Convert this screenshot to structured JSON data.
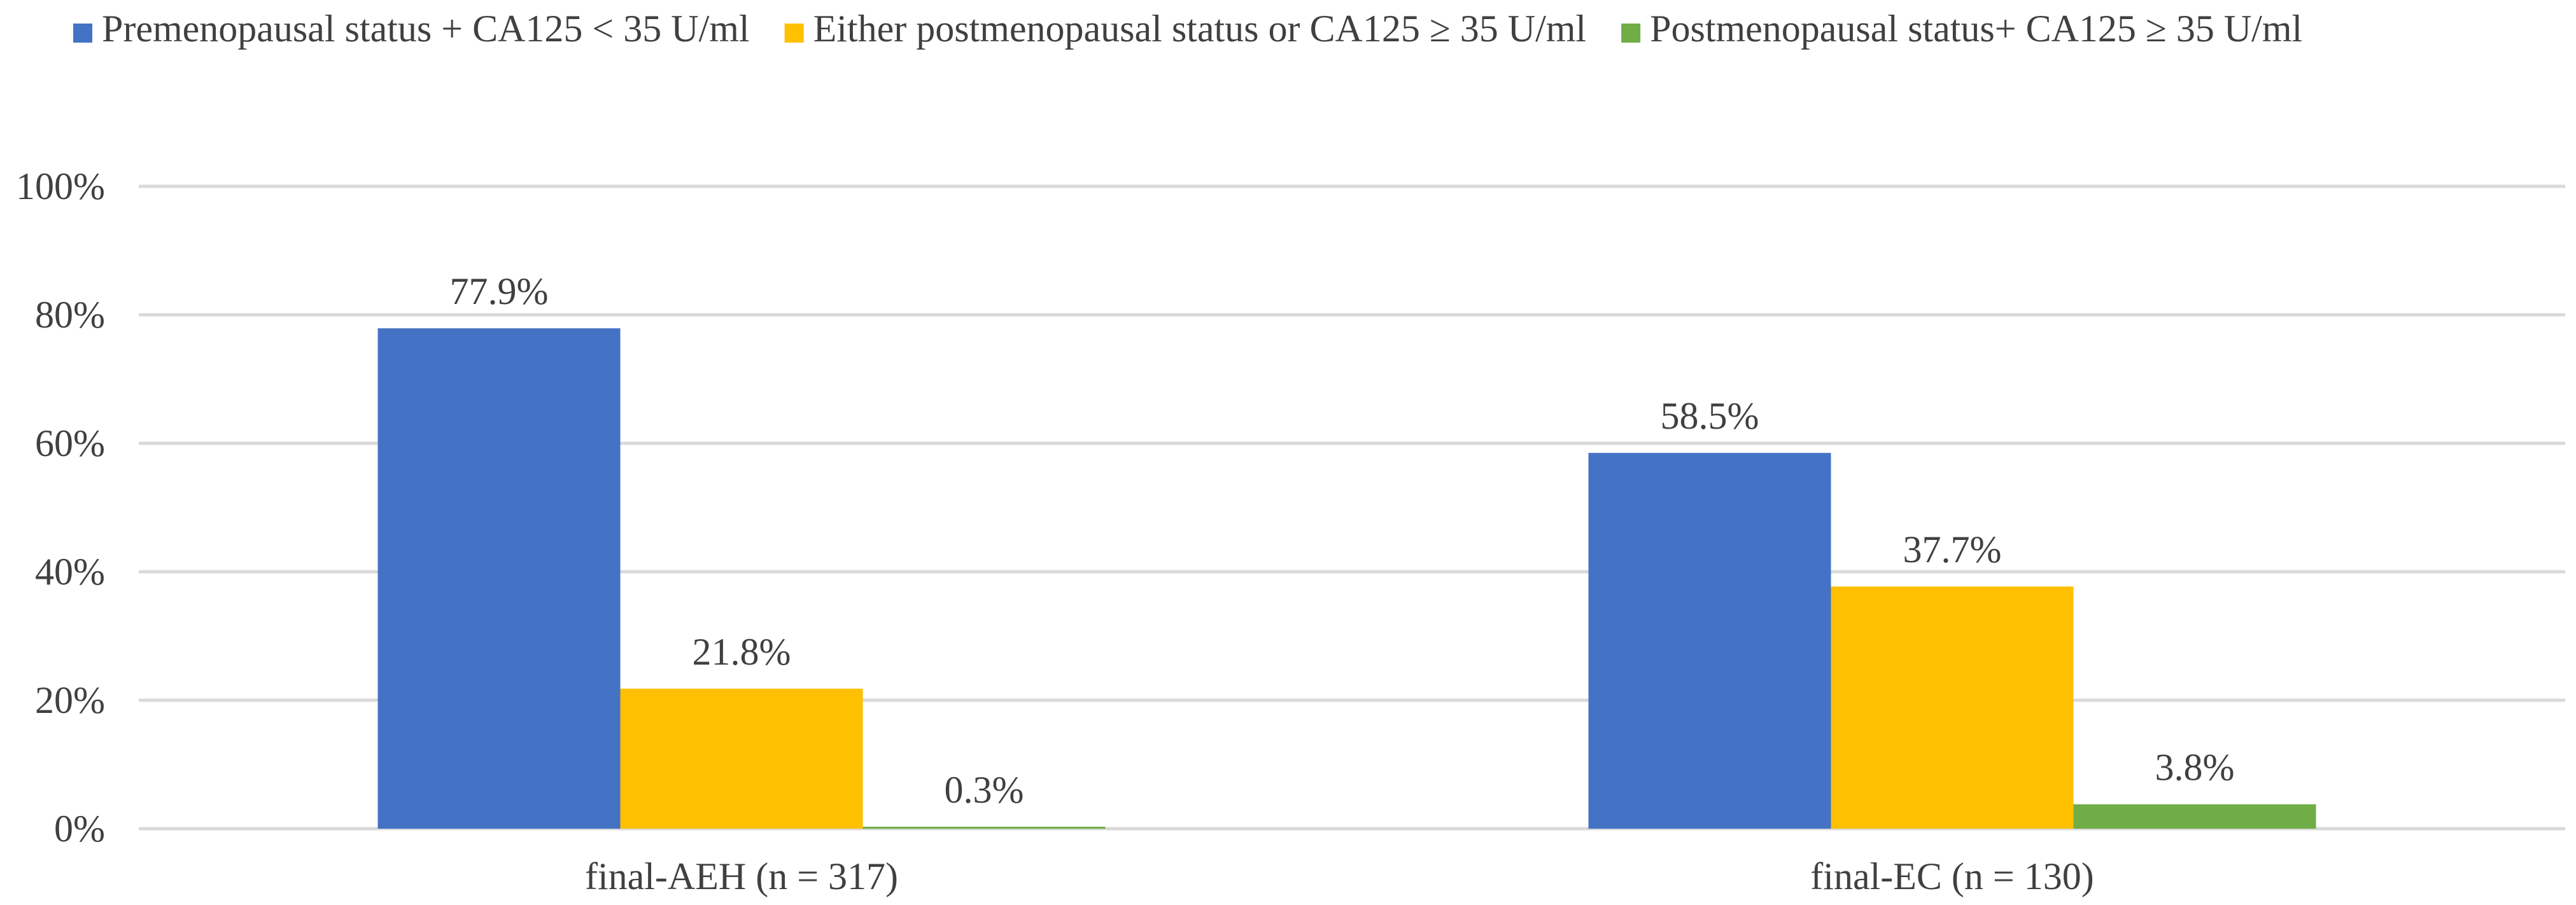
{
  "chart_data": {
    "type": "bar",
    "title": "",
    "xlabel": "",
    "ylabel": "",
    "categories": [
      "final-AEH (n = 317)",
      "final-EC (n = 130)"
    ],
    "series": [
      {
        "name": "Premenopausal status + CA125 < 35 U/ml",
        "color": "#4472C4",
        "values": [
          77.9,
          58.5
        ],
        "labels": [
          "77.9%",
          "58.5%"
        ]
      },
      {
        "name": "Either postmenopausal status or CA125 ≥ 35 U/ml",
        "color": "#FFC000",
        "values": [
          21.8,
          37.7
        ],
        "labels": [
          "21.8%",
          "37.7%"
        ]
      },
      {
        "name": "Postmenopausal status+ CA125 ≥ 35 U/ml",
        "color": "#70AD47",
        "values": [
          0.3,
          3.8
        ],
        "labels": [
          "0.3%",
          "3.8%"
        ]
      }
    ],
    "ylim": [
      0,
      100
    ],
    "yticks": [
      0,
      20,
      40,
      60,
      80,
      100
    ],
    "ytick_labels": [
      "0%",
      "20%",
      "40%",
      "60%",
      "80%",
      "100%"
    ],
    "grid": true,
    "legend_position": "top"
  }
}
